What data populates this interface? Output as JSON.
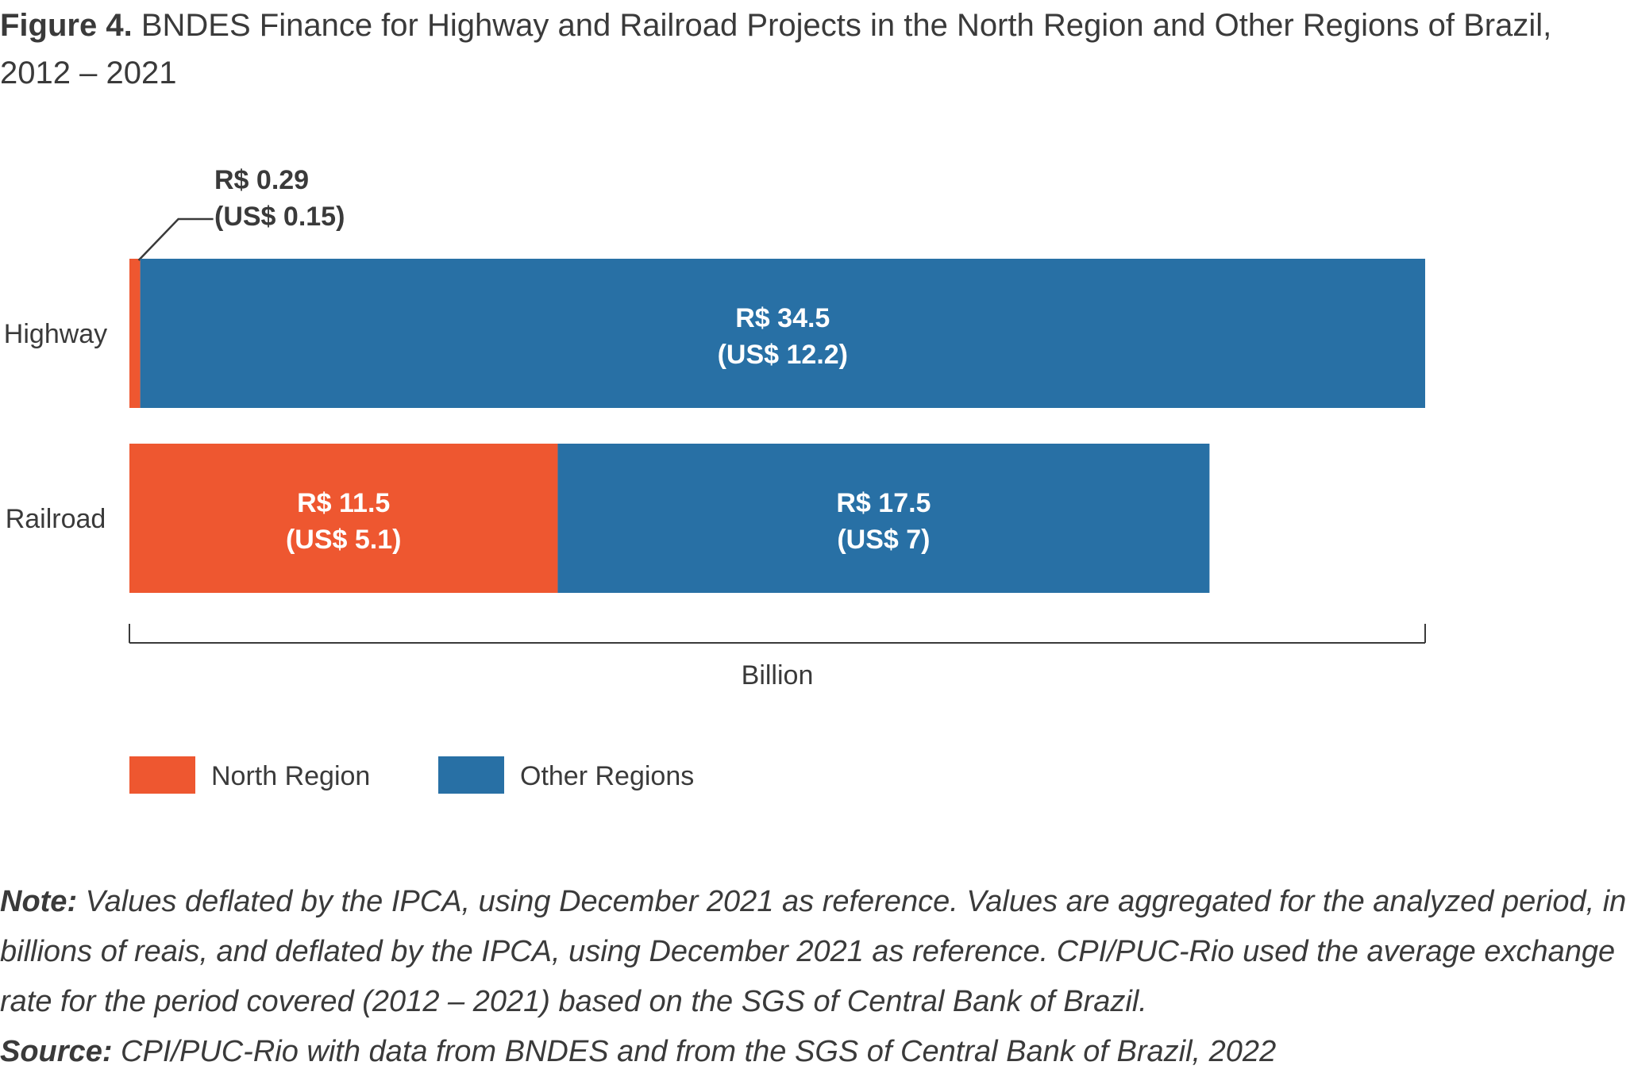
{
  "figure": {
    "title_lead": "Figure 4.",
    "title_text": "BNDES Finance for Highway and Railroad Projects in the North Region and Other Regions of Brazil, 2012 – 2021"
  },
  "chart_data": {
    "type": "bar",
    "orientation": "horizontal",
    "stacked": true,
    "categories": [
      "Highway",
      "Railroad"
    ],
    "series": [
      {
        "name": "North Region",
        "color": "#ee5730",
        "values": [
          0.29,
          11.5
        ],
        "labels": [
          [
            "R$ 0.29",
            "(US$ 0.15)"
          ],
          [
            "R$ 11.5",
            "(US$ 5.1)"
          ]
        ]
      },
      {
        "name": "Other Regions",
        "color": "#2870a5",
        "values": [
          34.5,
          17.5
        ],
        "labels": [
          [
            "R$ 34.5",
            "(US$ 12.2)"
          ],
          [
            "R$ 17.5",
            "(US$ 7)"
          ]
        ]
      }
    ],
    "xlabel": "Billion",
    "xlim": [
      0,
      34.79
    ],
    "legend_position": "bottom-left",
    "grid": false
  },
  "notes": {
    "note_lead": "Note:",
    "note_text": "Values deflated by the IPCA, using December 2021 as reference. Values are aggregated for the analyzed period, in billions of reais, and deflated by the IPCA, using December 2021 as reference. CPI/PUC-Rio used the average exchange rate for the period covered (2012 – 2021) based on the SGS of Central Bank of Brazil.",
    "source_lead": "Source:",
    "source_text": "CPI/PUC-Rio with data from BNDES and from the SGS of Central Bank of Brazil, 2022"
  }
}
